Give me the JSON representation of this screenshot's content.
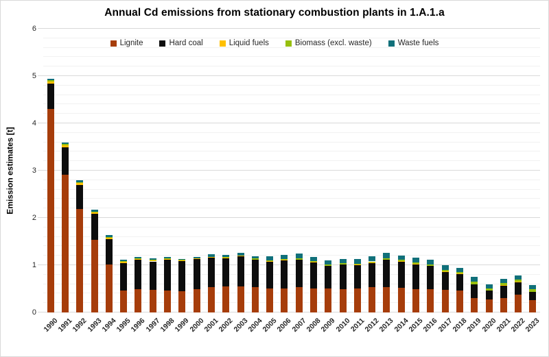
{
  "chart_data": {
    "type": "bar",
    "stacked": true,
    "title": "Annual Cd emissions from stationary combustion plants in 1.A.1.a",
    "ylabel": "Emission estimates [t]",
    "ylim": [
      0,
      6
    ],
    "ytick_step": 1,
    "yminor_step": 0.2,
    "ytick_labels": [
      "0",
      "1",
      "2",
      "3",
      "4",
      "5",
      "6"
    ],
    "grid": "horizontal major+minor",
    "legend_position": "top-center",
    "categories": [
      "1990",
      "1991",
      "1992",
      "1993",
      "1994",
      "1995",
      "1996",
      "1997",
      "1998",
      "1999",
      "2000",
      "2001",
      "2002",
      "2003",
      "2004",
      "2005",
      "2006",
      "2007",
      "2008",
      "2009",
      "2010",
      "2011",
      "2012",
      "2013",
      "2014",
      "2015",
      "2016",
      "2017",
      "2018",
      "2019",
      "2020",
      "2021",
      "2022",
      "2023"
    ],
    "series": [
      {
        "name": "Lignite",
        "color": "#A63D0B",
        "values": [
          4.3,
          2.92,
          2.19,
          1.53,
          1.01,
          0.47,
          0.49,
          0.48,
          0.47,
          0.45,
          0.49,
          0.53,
          0.55,
          0.55,
          0.53,
          0.51,
          0.51,
          0.53,
          0.51,
          0.51,
          0.49,
          0.51,
          0.53,
          0.53,
          0.52,
          0.5,
          0.49,
          0.48,
          0.47,
          0.31,
          0.27,
          0.31,
          0.38,
          0.26
        ]
      },
      {
        "name": "Hard coal",
        "color": "#0D0D0D",
        "values": [
          0.54,
          0.57,
          0.5,
          0.56,
          0.54,
          0.58,
          0.62,
          0.6,
          0.64,
          0.63,
          0.64,
          0.63,
          0.6,
          0.64,
          0.58,
          0.56,
          0.59,
          0.58,
          0.55,
          0.47,
          0.52,
          0.49,
          0.52,
          0.58,
          0.55,
          0.52,
          0.49,
          0.38,
          0.34,
          0.28,
          0.19,
          0.26,
          0.26,
          0.17
        ]
      },
      {
        "name": "Liquid fuels",
        "color": "#FFC000",
        "values": [
          0.05,
          0.05,
          0.05,
          0.03,
          0.03,
          0.02,
          0.02,
          0.02,
          0.02,
          0.02,
          0.01,
          0.01,
          0.01,
          0.01,
          0.01,
          0.01,
          0.01,
          0.01,
          0.01,
          0.01,
          0.01,
          0.01,
          0.01,
          0.01,
          0.01,
          0.01,
          0.01,
          0.01,
          0.01,
          0.01,
          0.01,
          0.01,
          0.01,
          0.01
        ]
      },
      {
        "name": "Biomass (excl. waste)",
        "color": "#97BF0D",
        "values": [
          0.02,
          0.02,
          0.02,
          0.01,
          0.01,
          0.01,
          0.01,
          0.01,
          0.01,
          0.01,
          0.01,
          0.01,
          0.01,
          0.01,
          0.02,
          0.02,
          0.02,
          0.02,
          0.02,
          0.02,
          0.02,
          0.02,
          0.02,
          0.03,
          0.03,
          0.03,
          0.03,
          0.03,
          0.03,
          0.05,
          0.04,
          0.05,
          0.04,
          0.05
        ]
      },
      {
        "name": "Waste fuels",
        "color": "#10707A",
        "values": [
          0.03,
          0.04,
          0.04,
          0.04,
          0.05,
          0.04,
          0.04,
          0.03,
          0.04,
          0.02,
          0.03,
          0.05,
          0.05,
          0.05,
          0.05,
          0.09,
          0.09,
          0.1,
          0.09,
          0.09,
          0.09,
          0.1,
          0.11,
          0.11,
          0.1,
          0.1,
          0.1,
          0.1,
          0.09,
          0.1,
          0.08,
          0.08,
          0.09,
          0.09
        ]
      }
    ]
  }
}
